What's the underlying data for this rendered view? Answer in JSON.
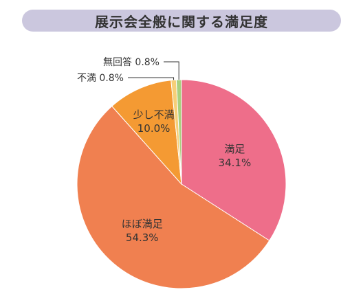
{
  "chart_data": {
    "type": "pie",
    "title": "展示会全般に関する満足度",
    "slices": [
      {
        "label": "満足",
        "value": 34.1,
        "value_label": "34.1%",
        "color": "#ee6e8a"
      },
      {
        "label": "ほぼ満足",
        "value": 54.3,
        "value_label": "54.3%",
        "color": "#f08050"
      },
      {
        "label": "少し不満",
        "value": 10.0,
        "value_label": "10.0%",
        "color": "#f49a33"
      },
      {
        "label": "不満",
        "value": 0.8,
        "value_label": "不満 0.8%",
        "color": "#f6cf78"
      },
      {
        "label": "無回答",
        "value": 0.8,
        "value_label": "無回答 0.8%",
        "color": "#a9d07e"
      }
    ],
    "start": "12 o'clock",
    "direction": "clockwise"
  }
}
